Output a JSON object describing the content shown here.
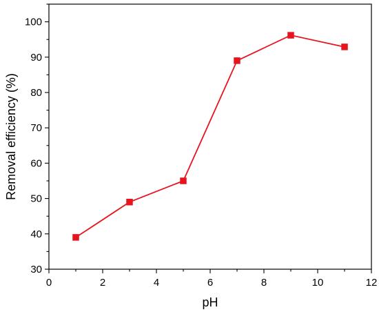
{
  "chart_data": {
    "type": "line",
    "title": "",
    "xlabel": "pH",
    "ylabel": "Removal efficiency (%)",
    "xlim": [
      0,
      12
    ],
    "ylim": [
      30,
      105
    ],
    "x_ticks": [
      0,
      2,
      4,
      6,
      8,
      10,
      12
    ],
    "y_ticks": [
      30,
      40,
      50,
      60,
      70,
      80,
      90,
      100
    ],
    "grid": false,
    "legend": "none",
    "series": [
      {
        "color": "#e8141d",
        "marker": "square",
        "x": [
          1,
          3,
          5,
          7,
          9,
          11
        ],
        "y": [
          39,
          49,
          55,
          89,
          96.2,
          92.9
        ]
      }
    ]
  }
}
